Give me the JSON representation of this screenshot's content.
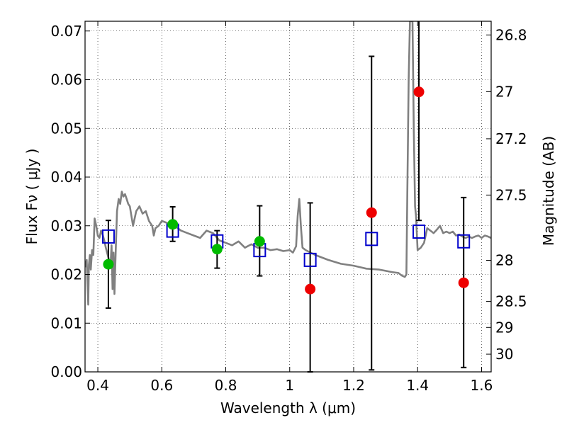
{
  "chart_data": {
    "type": "scatter",
    "xlabel": "Wavelength  λ (μm)",
    "ylabel_left": "Flux  Fν  ( μJy )",
    "ylabel_right": "Magnitude (AB)",
    "xlim": [
      0.36,
      1.63
    ],
    "ylim": [
      0.0,
      0.072
    ],
    "grid": true,
    "x_ticks": [
      {
        "v": 0.4,
        "label": "0.4"
      },
      {
        "v": 0.6,
        "label": "0.6"
      },
      {
        "v": 0.8,
        "label": "0.8"
      },
      {
        "v": 1.0,
        "label": "1"
      },
      {
        "v": 1.2,
        "label": "1.2"
      },
      {
        "v": 1.4,
        "label": "1.4"
      },
      {
        "v": 1.6,
        "label": "1.6"
      }
    ],
    "y_ticks": [
      {
        "v": 0.0,
        "label": "0.00"
      },
      {
        "v": 0.01,
        "label": "0.01"
      },
      {
        "v": 0.02,
        "label": "0.02"
      },
      {
        "v": 0.03,
        "label": "0.03"
      },
      {
        "v": 0.04,
        "label": "0.04"
      },
      {
        "v": 0.05,
        "label": "0.05"
      },
      {
        "v": 0.06,
        "label": "0.06"
      },
      {
        "v": 0.07,
        "label": "0.07"
      }
    ],
    "right_ticks": [
      {
        "mag": 26.8,
        "label": "26.8"
      },
      {
        "mag": 27.0,
        "label": "27"
      },
      {
        "mag": 27.2,
        "label": "27.2"
      },
      {
        "mag": 27.5,
        "label": "27.5"
      },
      {
        "mag": 28.0,
        "label": "28"
      },
      {
        "mag": 28.5,
        "label": "28.5"
      },
      {
        "mag": 29.0,
        "label": "29"
      },
      {
        "mag": 30.0,
        "label": "30"
      }
    ],
    "colors": {
      "detected": "#00bb00",
      "upper": "#ee0000",
      "model_marker": "#0000cc",
      "sed": "#808080",
      "errorbar": "#000000"
    },
    "series": [
      {
        "name": "",
        "kind": "sed",
        "points": [
          [
            0.36,
            0.0215
          ],
          [
            0.365,
            0.023
          ],
          [
            0.37,
            0.0138
          ],
          [
            0.372,
            0.022
          ],
          [
            0.375,
            0.024
          ],
          [
            0.378,
            0.021
          ],
          [
            0.382,
            0.025
          ],
          [
            0.386,
            0.024
          ],
          [
            0.39,
            0.0315
          ],
          [
            0.395,
            0.03
          ],
          [
            0.4,
            0.028
          ],
          [
            0.405,
            0.0275
          ],
          [
            0.41,
            0.029
          ],
          [
            0.415,
            0.0282
          ],
          [
            0.42,
            0.027
          ],
          [
            0.425,
            0.0255
          ],
          [
            0.43,
            0.0242
          ],
          [
            0.435,
            0.023
          ],
          [
            0.44,
            0.0222
          ],
          [
            0.443,
            0.026
          ],
          [
            0.446,
            0.017
          ],
          [
            0.449,
            0.0245
          ],
          [
            0.452,
            0.016
          ],
          [
            0.456,
            0.025
          ],
          [
            0.46,
            0.033
          ],
          [
            0.465,
            0.0355
          ],
          [
            0.47,
            0.0345
          ],
          [
            0.475,
            0.037
          ],
          [
            0.48,
            0.036
          ],
          [
            0.485,
            0.0365
          ],
          [
            0.49,
            0.0355
          ],
          [
            0.495,
            0.0345
          ],
          [
            0.5,
            0.034
          ],
          [
            0.51,
            0.03
          ],
          [
            0.52,
            0.033
          ],
          [
            0.53,
            0.034
          ],
          [
            0.54,
            0.0325
          ],
          [
            0.55,
            0.033
          ],
          [
            0.56,
            0.031
          ],
          [
            0.57,
            0.03
          ],
          [
            0.575,
            0.028
          ],
          [
            0.58,
            0.0295
          ],
          [
            0.59,
            0.03
          ],
          [
            0.6,
            0.031
          ],
          [
            0.62,
            0.0305
          ],
          [
            0.64,
            0.03
          ],
          [
            0.66,
            0.029
          ],
          [
            0.68,
            0.0285
          ],
          [
            0.7,
            0.028
          ],
          [
            0.72,
            0.0275
          ],
          [
            0.74,
            0.029
          ],
          [
            0.76,
            0.0285
          ],
          [
            0.78,
            0.027
          ],
          [
            0.8,
            0.0265
          ],
          [
            0.82,
            0.026
          ],
          [
            0.84,
            0.0268
          ],
          [
            0.86,
            0.0255
          ],
          [
            0.88,
            0.0262
          ],
          [
            0.9,
            0.0255
          ],
          [
            0.92,
            0.0255
          ],
          [
            0.94,
            0.025
          ],
          [
            0.96,
            0.0252
          ],
          [
            0.98,
            0.0248
          ],
          [
            1.0,
            0.025
          ],
          [
            1.01,
            0.0245
          ],
          [
            1.02,
            0.0258
          ],
          [
            1.025,
            0.032
          ],
          [
            1.03,
            0.0355
          ],
          [
            1.035,
            0.03
          ],
          [
            1.04,
            0.0255
          ],
          [
            1.05,
            0.025
          ],
          [
            1.08,
            0.024
          ],
          [
            1.12,
            0.023
          ],
          [
            1.16,
            0.0222
          ],
          [
            1.2,
            0.0218
          ],
          [
            1.24,
            0.0212
          ],
          [
            1.28,
            0.021
          ],
          [
            1.32,
            0.0205
          ],
          [
            1.34,
            0.0203
          ],
          [
            1.35,
            0.0198
          ],
          [
            1.36,
            0.0195
          ],
          [
            1.365,
            0.02
          ],
          [
            1.368,
            0.038
          ],
          [
            1.372,
            0.06
          ],
          [
            1.376,
            0.072
          ],
          [
            1.384,
            0.072
          ],
          [
            1.388,
            0.05
          ],
          [
            1.392,
            0.034
          ],
          [
            1.395,
            0.032
          ],
          [
            1.4,
            0.025
          ],
          [
            1.41,
            0.0255
          ],
          [
            1.42,
            0.0265
          ],
          [
            1.43,
            0.0295
          ],
          [
            1.44,
            0.029
          ],
          [
            1.45,
            0.0285
          ],
          [
            1.46,
            0.0292
          ],
          [
            1.47,
            0.03
          ],
          [
            1.48,
            0.0285
          ],
          [
            1.49,
            0.0288
          ],
          [
            1.5,
            0.0285
          ],
          [
            1.51,
            0.0288
          ],
          [
            1.52,
            0.028
          ],
          [
            1.53,
            0.0282
          ],
          [
            1.54,
            0.0278
          ],
          [
            1.55,
            0.0275
          ],
          [
            1.56,
            0.0278
          ],
          [
            1.57,
            0.0275
          ],
          [
            1.58,
            0.0278
          ],
          [
            1.59,
            0.028
          ],
          [
            1.6,
            0.0275
          ],
          [
            1.61,
            0.028
          ],
          [
            1.62,
            0.0278
          ],
          [
            1.63,
            0.0275
          ]
        ]
      },
      {
        "name": "",
        "kind": "model",
        "points": [
          [
            0.433,
            0.0278
          ],
          [
            0.634,
            0.029
          ],
          [
            0.773,
            0.0268
          ],
          [
            0.906,
            0.025
          ],
          [
            1.064,
            0.023
          ],
          [
            1.256,
            0.0273
          ],
          [
            1.404,
            0.0288
          ],
          [
            1.544,
            0.0268
          ]
        ]
      },
      {
        "name": "",
        "kind": "detected",
        "points": [
          [
            0.433,
            0.0221
          ],
          [
            0.634,
            0.0303
          ],
          [
            0.773,
            0.0252
          ],
          [
            0.906,
            0.0268
          ]
        ]
      },
      {
        "name": "",
        "kind": "upper",
        "points": [
          [
            1.064,
            0.017
          ],
          [
            1.256,
            0.0327
          ],
          [
            1.404,
            0.0575
          ],
          [
            1.544,
            0.0183
          ]
        ]
      },
      {
        "name": "",
        "kind": "errorbars",
        "bars": [
          {
            "x": 0.433,
            "lo": 0.0131,
            "hi": 0.0311
          },
          {
            "x": 0.634,
            "lo": 0.0268,
            "hi": 0.0339
          },
          {
            "x": 0.773,
            "lo": 0.0213,
            "hi": 0.029
          },
          {
            "x": 0.906,
            "lo": 0.0197,
            "hi": 0.0341
          },
          {
            "x": 1.064,
            "lo": 0.0,
            "hi": 0.0347
          },
          {
            "x": 1.256,
            "lo": 0.0004,
            "hi": 0.0648
          },
          {
            "x": 1.404,
            "lo": 0.0311,
            "hi": 0.072
          },
          {
            "x": 1.544,
            "lo": 0.0009,
            "hi": 0.0358
          }
        ]
      }
    ]
  }
}
